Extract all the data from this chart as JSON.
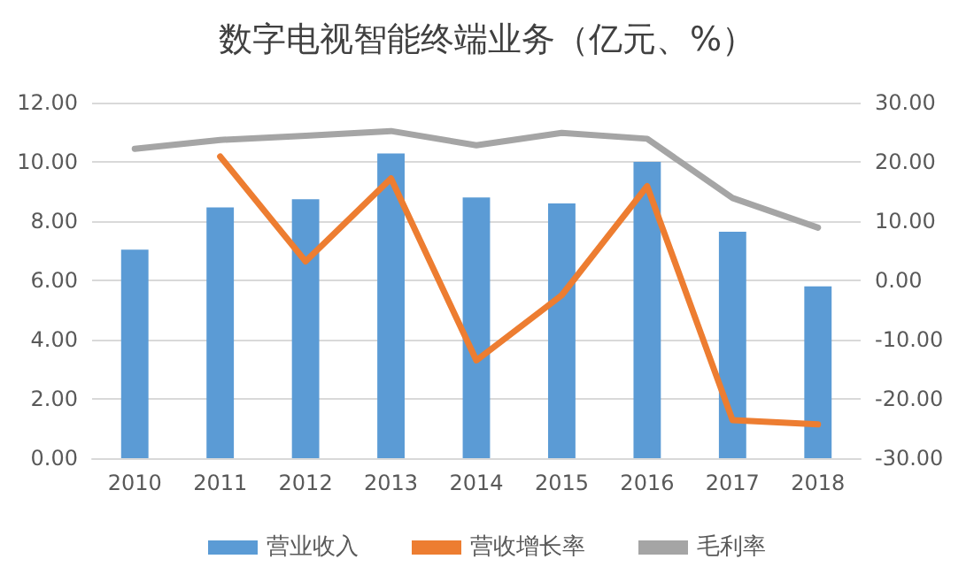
{
  "chart_data": {
    "type": "bar",
    "title": "数字电视智能终端业务（亿元、%）",
    "categories": [
      "2010",
      "2011",
      "2012",
      "2013",
      "2014",
      "2015",
      "2016",
      "2017",
      "2018"
    ],
    "series": [
      {
        "name": "营业收入",
        "color": "#5b9bd5",
        "values": [
          7.04,
          8.46,
          8.74,
          10.28,
          8.8,
          8.6,
          10.0,
          7.64,
          5.8
        ]
      },
      {
        "name": "营收增长率",
        "type": "line",
        "axis": "y2",
        "color": "#ed7d31",
        "values": [
          null,
          20.9,
          3.2,
          17.2,
          -13.5,
          -2.5,
          15.9,
          -23.6,
          -24.3
        ]
      },
      {
        "name": "毛利率",
        "type": "line",
        "axis": "y2",
        "color": "#a5a5a5",
        "values": [
          22.2,
          23.7,
          24.4,
          25.2,
          22.8,
          24.9,
          23.9,
          13.9,
          8.9
        ]
      }
    ],
    "ylim": [
      0,
      12
    ],
    "yticks": [
      {
        "value": 0,
        "label": "0.00"
      },
      {
        "value": 2,
        "label": "2.00"
      },
      {
        "value": 4,
        "label": "4.00"
      },
      {
        "value": 6,
        "label": "6.00"
      },
      {
        "value": 8,
        "label": "8.00"
      },
      {
        "value": 10,
        "label": "10.00"
      },
      {
        "value": 12,
        "label": "12.00"
      }
    ],
    "y2lim": [
      -30,
      30
    ],
    "y2ticks": [
      {
        "value": -30,
        "label": "-30.00"
      },
      {
        "value": -20,
        "label": "-20.00"
      },
      {
        "value": -10,
        "label": "-10.00"
      },
      {
        "value": 0,
        "label": "0.00"
      },
      {
        "value": 10,
        "label": "10.00"
      },
      {
        "value": 20,
        "label": "20.00"
      },
      {
        "value": 30,
        "label": "30.00"
      }
    ],
    "grid": "y",
    "legend": "bottom",
    "marker": "none",
    "line_style": "solid"
  }
}
